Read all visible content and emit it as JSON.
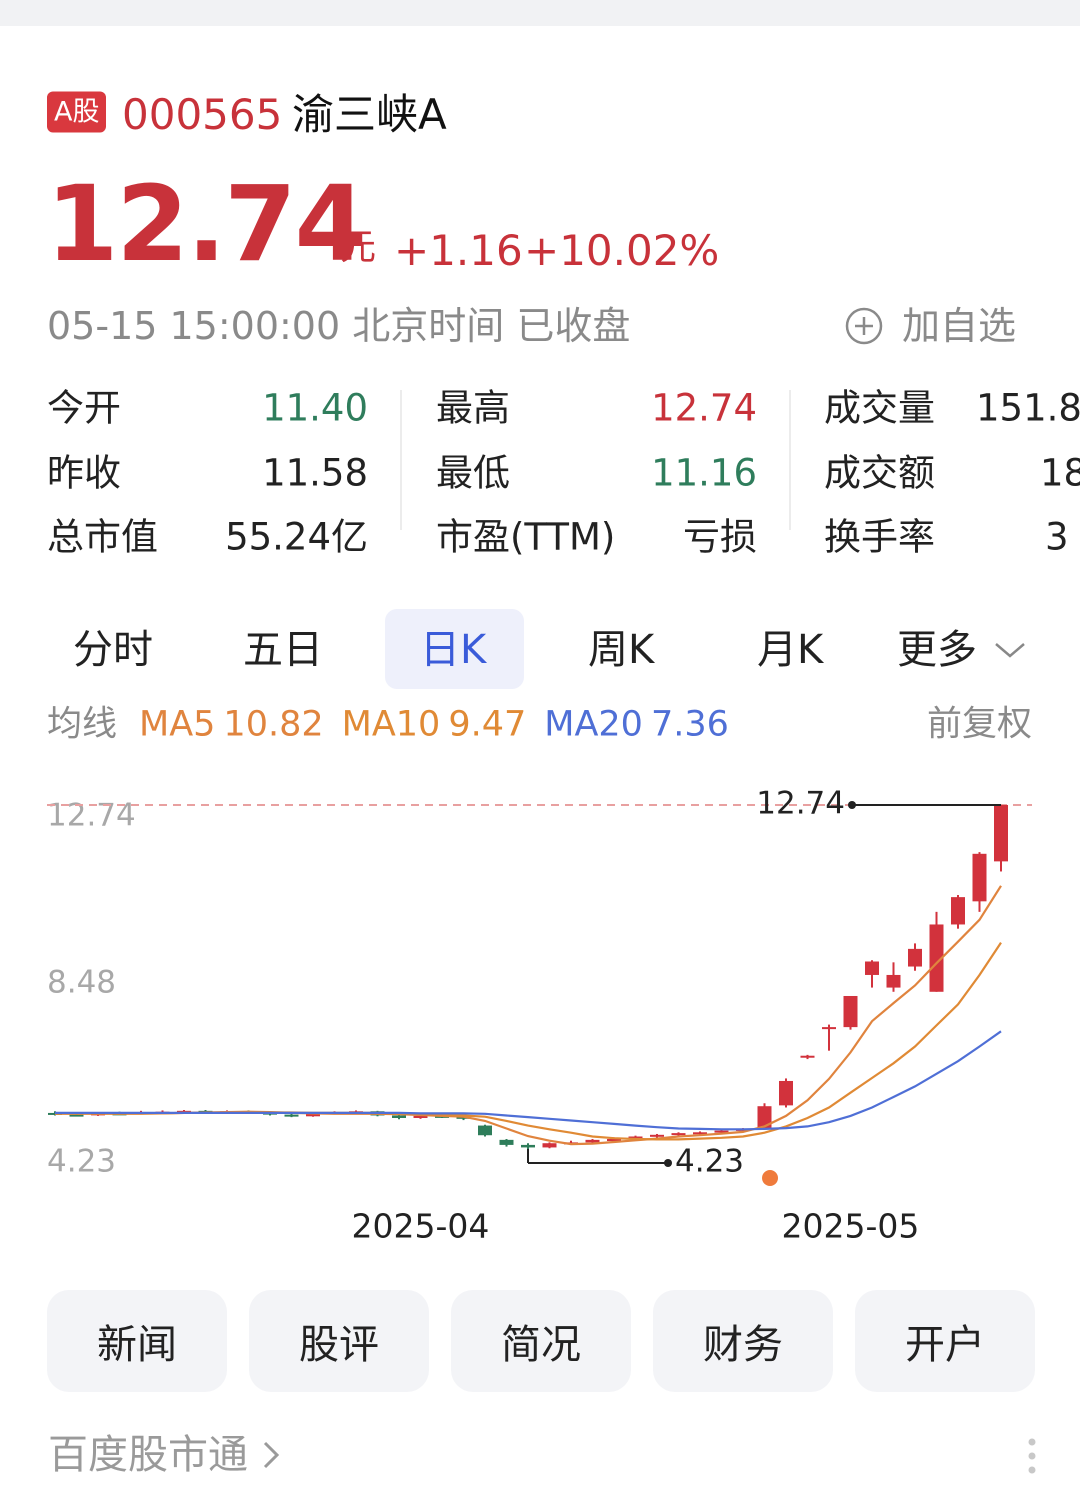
{
  "header": {
    "badge": "A股",
    "code": "000565",
    "name": "渝三峡A"
  },
  "quote": {
    "price": "12.74",
    "unit": "元",
    "change": "+1.16",
    "change_pct": "+10.02%",
    "time": "05-15 15:00:00",
    "timezone": "北京时间",
    "status": "已收盘",
    "watch": "加自选"
  },
  "stats": [
    [
      {
        "label": "今开",
        "value": "11.40",
        "color": "#2f7d5c"
      },
      {
        "label": "昨收",
        "value": "11.58",
        "color": "#222222"
      },
      {
        "label": "总市值",
        "value": "55.24亿",
        "color": "#222222"
      }
    ],
    [
      {
        "label": "最高",
        "value": "12.74",
        "color": "#c8323a"
      },
      {
        "label": "最低",
        "value": "11.16",
        "color": "#2f7d5c"
      },
      {
        "label": "市盈(TTM)",
        "value": "亏损",
        "color": "#222222"
      }
    ],
    [
      {
        "label": "成交量",
        "value": "151.8",
        "color": "#222222"
      },
      {
        "label": "成交额",
        "value": "18",
        "color": "#222222"
      },
      {
        "label": "换手率",
        "value": "3",
        "color": "#222222"
      }
    ]
  ],
  "tabs": {
    "items": [
      "分时",
      "五日",
      "日K",
      "周K",
      "月K",
      "更多"
    ],
    "selected": 2
  },
  "indicators": {
    "label": "均线",
    "adjust": "前复权"
  },
  "chart_data": {
    "type": "candlestick",
    "categories": [
      null,
      null,
      null,
      null,
      null,
      null,
      null,
      null,
      null,
      null,
      null,
      null,
      null,
      null,
      null,
      null,
      null,
      "2025-04",
      null,
      null,
      null,
      null,
      null,
      null,
      null,
      null,
      null,
      null,
      null,
      null,
      null,
      null,
      null,
      null,
      null,
      null,
      null,
      "2025-05",
      null,
      null,
      null,
      null,
      null,
      null,
      null
    ],
    "open": [
      5.42,
      5.38,
      5.37,
      5.41,
      5.4,
      5.44,
      5.45,
      5.47,
      5.45,
      5.46,
      5.43,
      5.38,
      5.34,
      5.42,
      5.44,
      5.46,
      5.36,
      5.3,
      5.35,
      5.33,
      5.12,
      4.78,
      4.66,
      4.6,
      4.7,
      4.72,
      4.78,
      4.8,
      4.86,
      4.9,
      4.94,
      4.96,
      5.0,
      5.05,
      5.6,
      6.75,
      7.46,
      7.46,
      8.7,
      8.4,
      8.9,
      8.3,
      9.9,
      10.45,
      11.4
    ],
    "high": [
      5.46,
      5.42,
      5.43,
      5.45,
      5.47,
      5.48,
      5.49,
      5.49,
      5.48,
      5.48,
      5.45,
      5.41,
      5.44,
      5.46,
      5.48,
      5.47,
      5.38,
      5.38,
      5.38,
      5.35,
      5.14,
      4.8,
      4.7,
      4.72,
      4.76,
      4.8,
      4.84,
      4.88,
      4.92,
      4.96,
      4.98,
      5.02,
      5.06,
      5.65,
      6.24,
      6.8,
      7.52,
      8.2,
      9.05,
      9.0,
      9.45,
      10.2,
      10.6,
      11.62,
      12.74
    ],
    "low": [
      5.36,
      5.34,
      5.35,
      5.38,
      5.39,
      5.4,
      5.42,
      5.43,
      5.42,
      5.41,
      5.36,
      5.32,
      5.33,
      5.39,
      5.41,
      5.34,
      5.27,
      5.28,
      5.3,
      5.25,
      4.86,
      4.62,
      4.23,
      4.58,
      4.66,
      4.7,
      4.74,
      4.78,
      4.82,
      4.87,
      4.9,
      4.93,
      4.97,
      5.02,
      5.55,
      6.7,
      6.9,
      7.4,
      8.4,
      8.3,
      8.8,
      8.3,
      9.8,
      10.2,
      11.16
    ],
    "close": [
      5.38,
      5.36,
      5.41,
      5.4,
      5.44,
      5.45,
      5.47,
      5.45,
      5.46,
      5.43,
      5.38,
      5.34,
      5.42,
      5.44,
      5.46,
      5.36,
      5.3,
      5.35,
      5.33,
      5.28,
      4.89,
      4.66,
      4.6,
      4.7,
      4.72,
      4.78,
      4.8,
      4.86,
      4.9,
      4.94,
      4.96,
      5.0,
      5.04,
      5.58,
      6.18,
      6.78,
      7.46,
      8.2,
      9.02,
      8.7,
      9.32,
      9.9,
      10.55,
      11.58,
      12.74
    ],
    "up_color": "#d2323c",
    "down_color": "#2e7d5a",
    "series": [
      {
        "name": "MA5",
        "color": "#e0843e",
        "values": [
          5.4,
          5.4,
          5.4,
          5.4,
          5.4,
          5.41,
          5.42,
          5.43,
          5.44,
          5.45,
          5.44,
          5.42,
          5.41,
          5.4,
          5.4,
          5.4,
          5.39,
          5.37,
          5.35,
          5.33,
          5.23,
          5.05,
          4.87,
          4.76,
          4.68,
          4.69,
          4.73,
          4.77,
          4.81,
          4.86,
          4.89,
          4.93,
          4.97,
          5.1,
          5.35,
          5.72,
          6.23,
          6.86,
          7.6,
          8.03,
          8.45,
          8.98,
          9.49,
          10.01,
          10.82
        ]
      },
      {
        "name": "MA10",
        "color": "#e08a35",
        "values": [
          5.41,
          5.41,
          5.41,
          5.41,
          5.41,
          5.41,
          5.42,
          5.42,
          5.42,
          5.43,
          5.43,
          5.43,
          5.42,
          5.42,
          5.42,
          5.42,
          5.41,
          5.4,
          5.38,
          5.36,
          5.33,
          5.23,
          5.12,
          5.03,
          4.95,
          4.86,
          4.82,
          4.8,
          4.79,
          4.79,
          4.81,
          4.83,
          4.86,
          4.95,
          5.1,
          5.3,
          5.55,
          5.9,
          6.25,
          6.6,
          7.0,
          7.5,
          8.0,
          8.7,
          9.47
        ]
      },
      {
        "name": "MA20",
        "color": "#4f6fd6",
        "values": [
          5.42,
          5.42,
          5.42,
          5.42,
          5.42,
          5.42,
          5.42,
          5.42,
          5.42,
          5.42,
          5.42,
          5.42,
          5.42,
          5.42,
          5.42,
          5.42,
          5.42,
          5.41,
          5.41,
          5.41,
          5.4,
          5.36,
          5.32,
          5.28,
          5.24,
          5.2,
          5.16,
          5.12,
          5.08,
          5.05,
          5.04,
          5.03,
          5.03,
          5.04,
          5.06,
          5.1,
          5.2,
          5.35,
          5.55,
          5.8,
          6.05,
          6.35,
          6.65,
          7.0,
          7.36
        ]
      }
    ],
    "ylim": [
      4.23,
      12.74
    ],
    "yticks": [
      12.74,
      8.48,
      4.23
    ]
  },
  "buttons": [
    "新闻",
    "股评",
    "简况",
    "财务",
    "开户"
  ],
  "footer": "百度股市通"
}
